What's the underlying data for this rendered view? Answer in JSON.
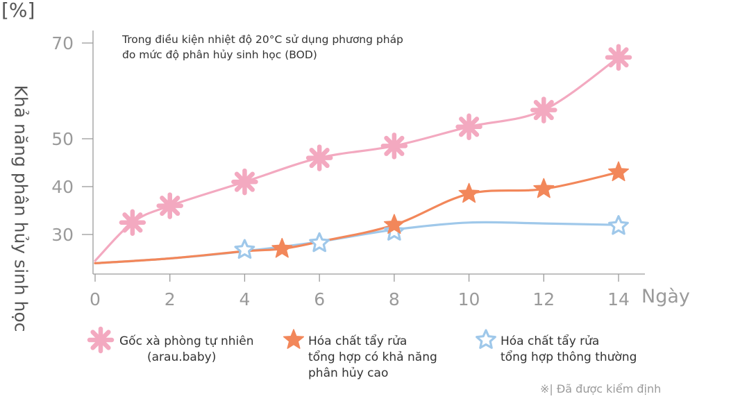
{
  "chart_data": {
    "type": "line",
    "unit_label": "[%]",
    "ylabel": "Khả năng phân hủy sinh học",
    "xlabel": "Ngày",
    "annotation": [
      "Trong điều kiện nhiệt độ 20°C sử dụng phương pháp",
      "đo mức độ phân hủy sinh học (BOD)"
    ],
    "footnote": "※| Đã được kiểm định",
    "x_ticks": [
      0,
      2,
      4,
      6,
      8,
      10,
      12,
      14
    ],
    "y_ticks": [
      30,
      40,
      50,
      70
    ],
    "xlim": [
      0,
      14
    ],
    "ylim": [
      24,
      72
    ],
    "series": [
      {
        "name": "Gốc xà phòng tự nhiên (arau.baby)",
        "legend_lines": [
          "Gốc xà phòng tự nhiên",
          "(arau.baby)"
        ],
        "color": "#f3a9c0",
        "marker": "asterisk",
        "line_x": [
          0,
          1,
          2,
          4,
          6,
          8,
          10,
          12,
          14
        ],
        "line_y": [
          24.5,
          32.5,
          36,
          41,
          46,
          48.5,
          52.5,
          56,
          67
        ],
        "marker_x": [
          1,
          2,
          4,
          6,
          8,
          10,
          12,
          14
        ],
        "marker_y": [
          32.5,
          36,
          41,
          46,
          48.5,
          52.5,
          56,
          67
        ]
      },
      {
        "name": "Hóa chất tẩy rửa tổng hợp có khả năng phân hủy cao",
        "legend_lines": [
          "Hóa chất tẩy rửa",
          "tổng hợp có khả năng",
          "phân hủy cao"
        ],
        "color": "#f2875a",
        "marker": "star-filled",
        "line_x": [
          0,
          2,
          4,
          5,
          6,
          8,
          10,
          12,
          14
        ],
        "line_y": [
          24,
          25,
          26.5,
          27,
          28.5,
          32,
          38.5,
          39.5,
          43
        ],
        "marker_x": [
          5,
          8,
          10,
          12,
          14
        ],
        "marker_y": [
          27,
          32,
          38.5,
          39.5,
          43
        ]
      },
      {
        "name": "Hóa chất tẩy rửa tổng hợp thông thường",
        "legend_lines": [
          "Hóa chất tẩy rửa",
          "tổng hợp thông thường"
        ],
        "color": "#9fc8ea",
        "marker": "star-outline",
        "line_x": [
          0,
          2,
          4,
          6,
          8,
          10,
          12,
          14
        ],
        "line_y": [
          24,
          25,
          26.5,
          28.5,
          31,
          32.5,
          32.3,
          32
        ],
        "marker_x": [
          4,
          6,
          8,
          14
        ],
        "marker_y": [
          26.8,
          28.2,
          30.6,
          31.8
        ]
      }
    ]
  }
}
